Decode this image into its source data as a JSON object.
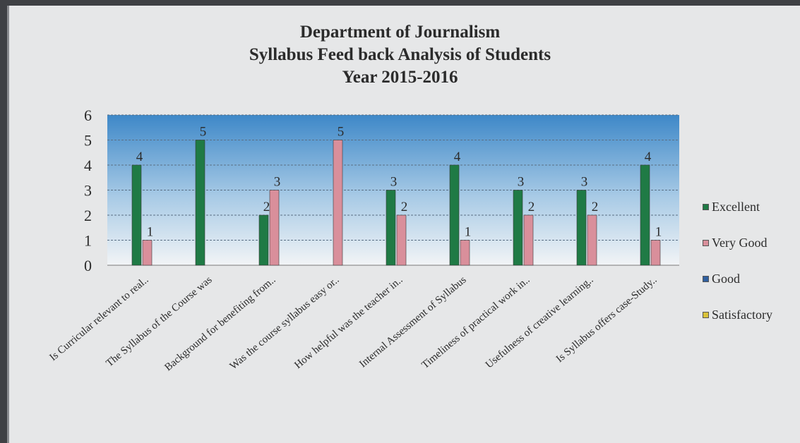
{
  "chart_data": {
    "type": "bar",
    "title_lines": [
      "Department of Journalism",
      "Syllabus Feed back Analysis  of Students",
      "Year 2015-2016"
    ],
    "categories": [
      "Is Curricular relevant to real..",
      "The Syllabus of the Course was",
      "Background for benefiting from..",
      "Was the course syllabus easy or..",
      "How helpful was the teacher in..",
      "Internal Assessment of Syllabus",
      "Timeliness of practical work in..",
      "Usefulness of creative learning..",
      "Is Syllabus offers case-Study.."
    ],
    "series": [
      {
        "name": "Excellent",
        "color": "#1f7a45",
        "values": [
          4,
          5,
          2,
          0,
          3,
          4,
          3,
          3,
          4
        ]
      },
      {
        "name": "Very Good",
        "color": "#d98f9b",
        "values": [
          1,
          0,
          3,
          5,
          2,
          1,
          2,
          2,
          1
        ]
      },
      {
        "name": "Good",
        "color": "#2f5f9f",
        "values": [
          0,
          0,
          0,
          0,
          0,
          0,
          0,
          0,
          0
        ]
      },
      {
        "name": "Satisfactory",
        "color": "#d9c23a",
        "values": [
          0,
          0,
          0,
          0,
          0,
          0,
          0,
          0,
          0
        ]
      }
    ],
    "ylim": [
      0,
      6
    ],
    "yticks": [
      "0",
      "1",
      "2",
      "3",
      "4",
      "5",
      "6"
    ],
    "grid": true,
    "legend_position": "right"
  }
}
